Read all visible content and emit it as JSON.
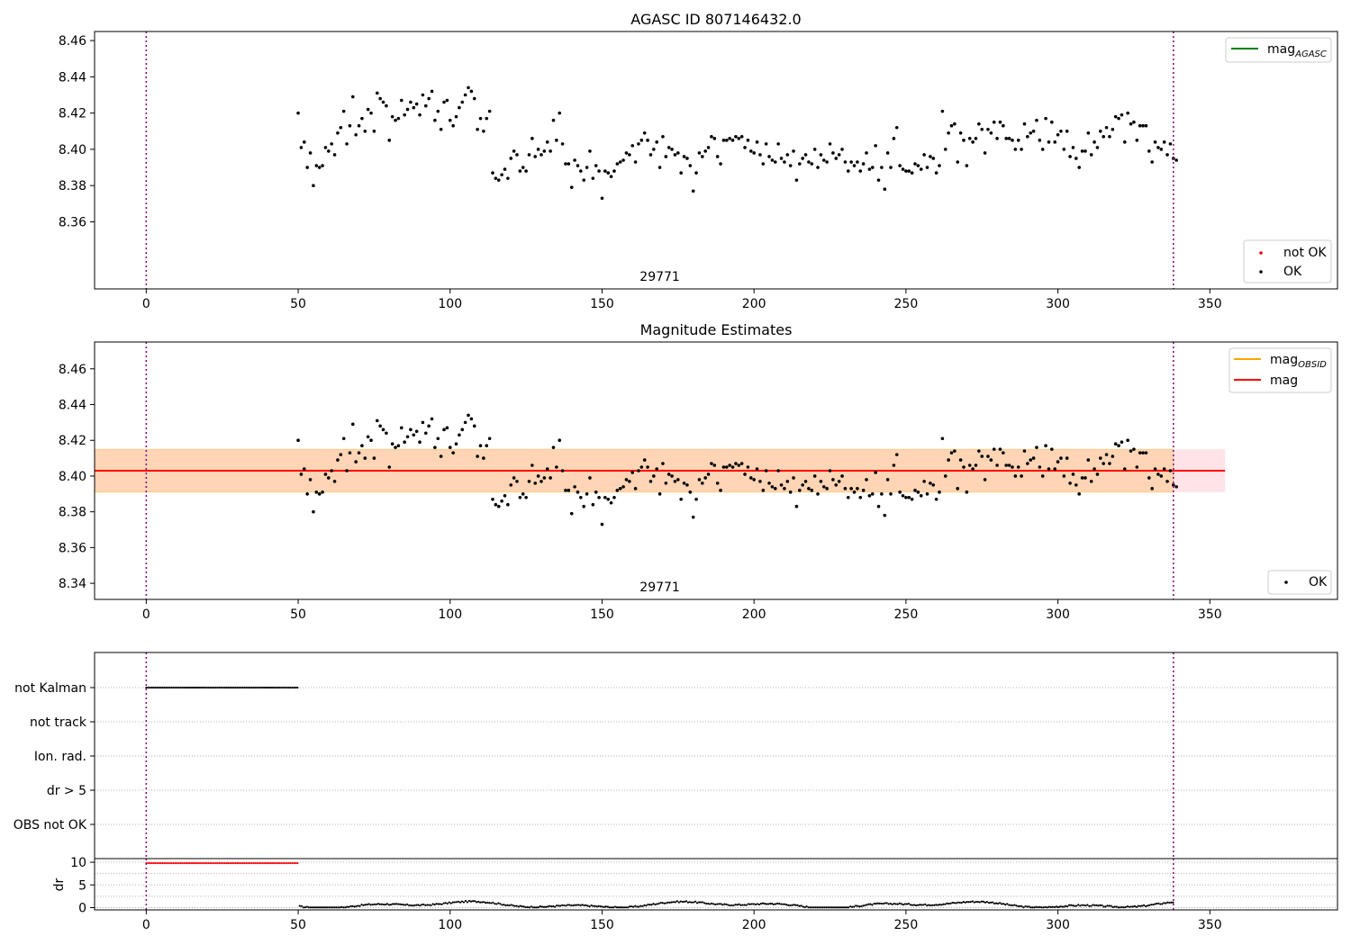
{
  "chart_data": [
    {
      "type": "scatter",
      "title": "AGASC ID 807146432.0",
      "xlim": [
        -17,
        392
      ],
      "ylim": [
        8.323,
        8.465
      ],
      "xticks": [
        0,
        50,
        100,
        150,
        200,
        250,
        300,
        350
      ],
      "yticks": [
        8.36,
        8.38,
        8.4,
        8.42,
        8.44,
        8.46
      ],
      "vlines": [
        0,
        338
      ],
      "obs_label": "29771",
      "obs_label_x": 169,
      "legend_lines": [
        {
          "label": "mag",
          "sub": "AGASC",
          "color": "#008000"
        }
      ],
      "legend_points": [
        {
          "label": "not OK",
          "color": "#ff0000"
        },
        {
          "label": "OK",
          "color": "#000000"
        }
      ],
      "series": [
        {
          "name": "OK",
          "color": "#000000",
          "x_start": 50,
          "x_end": 338
        }
      ]
    },
    {
      "type": "scatter",
      "title": "Magnitude Estimates",
      "xlim": [
        -17,
        392
      ],
      "ylim": [
        8.331,
        8.475
      ],
      "xticks": [
        0,
        50,
        100,
        150,
        200,
        250,
        300,
        350
      ],
      "yticks": [
        8.34,
        8.36,
        8.38,
        8.4,
        8.42,
        8.44,
        8.46
      ],
      "vlines": [
        0,
        338
      ],
      "obs_label": "29771",
      "obs_label_x": 169,
      "mag_line": 8.403,
      "mag_band": [
        8.391,
        8.415
      ],
      "band_x": [
        -17,
        355
      ],
      "legend_lines": [
        {
          "label": "mag",
          "sub": "OBSID",
          "color": "#ffa500"
        },
        {
          "label": "mag",
          "sub": "",
          "color": "#ff0000"
        }
      ],
      "legend_points": [
        {
          "label": "OK",
          "color": "#000000"
        }
      ],
      "series": [
        {
          "name": "OK",
          "color": "#000000",
          "x_start": 50,
          "x_end": 338
        }
      ]
    },
    {
      "type": "scatter",
      "xlim": [
        -17,
        392
      ],
      "flag_labels": [
        "not Kalman",
        "not track",
        "Ion. rad.",
        "dr > 5",
        "OBS not OK"
      ],
      "not_kalman_x": [
        0,
        50
      ],
      "vlines": [
        0,
        338
      ]
    },
    {
      "type": "scatter",
      "ylabel": "dr",
      "xlim": [
        -17,
        392
      ],
      "ylim": [
        -0.5,
        10.8
      ],
      "yticks": [
        0,
        5,
        10
      ],
      "xticks": [
        0,
        50,
        100,
        150,
        200,
        250,
        300,
        350
      ],
      "vlines": [
        0,
        338
      ],
      "series": [
        {
          "name": "dr > 5",
          "color": "#ff0000",
          "x_start": 0,
          "x_end": 50,
          "value": 9.8
        },
        {
          "name": "dr",
          "color": "#000000",
          "x_start": 50,
          "x_end": 338
        }
      ]
    }
  ],
  "mag_points": [
    [
      50,
      8.42
    ],
    [
      51,
      8.401
    ],
    [
      52,
      8.404
    ],
    [
      53,
      8.39
    ],
    [
      54,
      8.398
    ],
    [
      55,
      8.38
    ],
    [
      56,
      8.391
    ],
    [
      57,
      8.39
    ],
    [
      58,
      8.391
    ],
    [
      59,
      8.401
    ],
    [
      60,
      8.399
    ],
    [
      61,
      8.403
    ],
    [
      62,
      8.397
    ],
    [
      63,
      8.409
    ],
    [
      64,
      8.412
    ],
    [
      65,
      8.421
    ],
    [
      66,
      8.403
    ],
    [
      67,
      8.413
    ],
    [
      68,
      8.429
    ],
    [
      69,
      8.408
    ],
    [
      70,
      8.413
    ],
    [
      71,
      8.417
    ],
    [
      72,
      8.41
    ],
    [
      73,
      8.422
    ],
    [
      74,
      8.42
    ],
    [
      75,
      8.41
    ],
    [
      76,
      8.431
    ],
    [
      77,
      8.428
    ],
    [
      78,
      8.426
    ],
    [
      79,
      8.424
    ],
    [
      80,
      8.405
    ],
    [
      81,
      8.418
    ],
    [
      82,
      8.416
    ],
    [
      83,
      8.417
    ],
    [
      84,
      8.427
    ],
    [
      85,
      8.419
    ],
    [
      86,
      8.422
    ],
    [
      87,
      8.426
    ],
    [
      88,
      8.423
    ],
    [
      89,
      8.425
    ],
    [
      90,
      8.419
    ],
    [
      91,
      8.43
    ],
    [
      92,
      8.424
    ],
    [
      93,
      8.428
    ],
    [
      94,
      8.432
    ],
    [
      95,
      8.416
    ],
    [
      96,
      8.421
    ],
    [
      97,
      8.411
    ],
    [
      98,
      8.426
    ],
    [
      99,
      8.427
    ],
    [
      100,
      8.416
    ],
    [
      101,
      8.413
    ],
    [
      102,
      8.418
    ],
    [
      103,
      8.423
    ],
    [
      104,
      8.426
    ],
    [
      105,
      8.43
    ],
    [
      106,
      8.434
    ],
    [
      107,
      8.432
    ],
    [
      108,
      8.428
    ],
    [
      109,
      8.411
    ],
    [
      110,
      8.417
    ],
    [
      111,
      8.41
    ],
    [
      112,
      8.417
    ],
    [
      113,
      8.421
    ],
    [
      114,
      8.387
    ],
    [
      115,
      8.384
    ],
    [
      116,
      8.383
    ],
    [
      117,
      8.386
    ],
    [
      118,
      8.389
    ],
    [
      119,
      8.384
    ],
    [
      120,
      8.395
    ],
    [
      121,
      8.399
    ],
    [
      122,
      8.397
    ],
    [
      123,
      8.388
    ],
    [
      124,
      8.39
    ],
    [
      125,
      8.388
    ],
    [
      126,
      8.397
    ],
    [
      127,
      8.406
    ],
    [
      128,
      8.396
    ],
    [
      129,
      8.4
    ],
    [
      130,
      8.397
    ],
    [
      131,
      8.399
    ],
    [
      132,
      8.404
    ],
    [
      133,
      8.399
    ],
    [
      134,
      8.416
    ],
    [
      135,
      8.405
    ],
    [
      136,
      8.42
    ],
    [
      137,
      8.403
    ],
    [
      138,
      8.392
    ],
    [
      139,
      8.392
    ],
    [
      140,
      8.379
    ],
    [
      141,
      8.394
    ],
    [
      142,
      8.391
    ],
    [
      143,
      8.388
    ],
    [
      144,
      8.383
    ],
    [
      145,
      8.39
    ],
    [
      146,
      8.399
    ],
    [
      147,
      8.384
    ],
    [
      148,
      8.391
    ],
    [
      149,
      8.388
    ],
    [
      150,
      8.373
    ],
    [
      151,
      8.388
    ],
    [
      152,
      8.387
    ],
    [
      153,
      8.385
    ],
    [
      154,
      8.388
    ],
    [
      155,
      8.392
    ],
    [
      156,
      8.393
    ],
    [
      157,
      8.394
    ],
    [
      158,
      8.398
    ],
    [
      159,
      8.397
    ],
    [
      160,
      8.402
    ],
    [
      161,
      8.393
    ],
    [
      162,
      8.403
    ],
    [
      163,
      8.405
    ],
    [
      164,
      8.409
    ],
    [
      165,
      8.405
    ],
    [
      166,
      8.397
    ],
    [
      167,
      8.4
    ],
    [
      168,
      8.404
    ],
    [
      169,
      8.39
    ],
    [
      170,
      8.407
    ],
    [
      171,
      8.396
    ],
    [
      172,
      8.401
    ],
    [
      173,
      8.4
    ],
    [
      174,
      8.397
    ],
    [
      175,
      8.398
    ],
    [
      176,
      8.387
    ],
    [
      177,
      8.396
    ],
    [
      178,
      8.395
    ],
    [
      179,
      8.391
    ],
    [
      180,
      8.377
    ],
    [
      181,
      8.387
    ],
    [
      182,
      8.398
    ],
    [
      183,
      8.396
    ],
    [
      184,
      8.399
    ],
    [
      185,
      8.401
    ],
    [
      186,
      8.407
    ],
    [
      187,
      8.406
    ],
    [
      188,
      8.396
    ],
    [
      189,
      8.392
    ],
    [
      190,
      8.405
    ],
    [
      191,
      8.405
    ],
    [
      192,
      8.406
    ],
    [
      193,
      8.405
    ],
    [
      194,
      8.407
    ],
    [
      195,
      8.406
    ],
    [
      196,
      8.407
    ],
    [
      197,
      8.401
    ],
    [
      198,
      8.405
    ],
    [
      199,
      8.399
    ],
    [
      200,
      8.398
    ],
    [
      201,
      8.404
    ],
    [
      202,
      8.397
    ],
    [
      203,
      8.392
    ],
    [
      204,
      8.403
    ],
    [
      205,
      8.396
    ],
    [
      206,
      8.394
    ],
    [
      207,
      8.393
    ],
    [
      208,
      8.403
    ],
    [
      209,
      8.395
    ],
    [
      210,
      8.393
    ],
    [
      211,
      8.397
    ],
    [
      212,
      8.391
    ],
    [
      213,
      8.399
    ],
    [
      214,
      8.383
    ],
    [
      215,
      8.392
    ],
    [
      216,
      8.395
    ],
    [
      217,
      8.397
    ],
    [
      218,
      8.393
    ],
    [
      219,
      8.392
    ],
    [
      220,
      8.4
    ],
    [
      221,
      8.39
    ],
    [
      222,
      8.397
    ],
    [
      223,
      8.394
    ],
    [
      224,
      8.393
    ],
    [
      225,
      8.403
    ],
    [
      226,
      8.398
    ],
    [
      227,
      8.395
    ],
    [
      228,
      8.397
    ],
    [
      229,
      8.4
    ],
    [
      230,
      8.393
    ],
    [
      231,
      8.388
    ],
    [
      232,
      8.393
    ],
    [
      233,
      8.391
    ],
    [
      234,
      8.393
    ],
    [
      235,
      8.388
    ],
    [
      236,
      8.392
    ],
    [
      237,
      8.398
    ],
    [
      238,
      8.389
    ],
    [
      239,
      8.39
    ],
    [
      240,
      8.402
    ],
    [
      241,
      8.383
    ],
    [
      242,
      8.39
    ],
    [
      243,
      8.378
    ],
    [
      244,
      8.398
    ],
    [
      245,
      8.39
    ],
    [
      246,
      8.406
    ],
    [
      247,
      8.412
    ],
    [
      248,
      8.391
    ],
    [
      249,
      8.389
    ],
    [
      250,
      8.388
    ],
    [
      251,
      8.388
    ],
    [
      252,
      8.387
    ],
    [
      253,
      8.392
    ],
    [
      254,
      8.391
    ],
    [
      255,
      8.389
    ],
    [
      256,
      8.397
    ],
    [
      257,
      8.39
    ],
    [
      258,
      8.396
    ],
    [
      259,
      8.395
    ],
    [
      260,
      8.387
    ],
    [
      261,
      8.391
    ],
    [
      262,
      8.421
    ],
    [
      263,
      8.4
    ],
    [
      264,
      8.409
    ],
    [
      265,
      8.413
    ],
    [
      266,
      8.414
    ],
    [
      267,
      8.393
    ],
    [
      268,
      8.409
    ],
    [
      269,
      8.405
    ],
    [
      270,
      8.391
    ],
    [
      271,
      8.406
    ],
    [
      272,
      8.404
    ],
    [
      273,
      8.406
    ],
    [
      274,
      8.414
    ],
    [
      275,
      8.411
    ],
    [
      276,
      8.398
    ],
    [
      277,
      8.411
    ],
    [
      278,
      8.409
    ],
    [
      279,
      8.415
    ],
    [
      280,
      8.406
    ],
    [
      281,
      8.415
    ],
    [
      282,
      8.413
    ],
    [
      283,
      8.406
    ],
    [
      284,
      8.406
    ],
    [
      285,
      8.405
    ],
    [
      286,
      8.4
    ],
    [
      287,
      8.405
    ],
    [
      288,
      8.4
    ],
    [
      289,
      8.414
    ],
    [
      290,
      8.407
    ],
    [
      291,
      8.409
    ],
    [
      292,
      8.41
    ],
    [
      293,
      8.416
    ],
    [
      294,
      8.405
    ],
    [
      295,
      8.4
    ],
    [
      296,
      8.417
    ],
    [
      297,
      8.404
    ],
    [
      298,
      8.415
    ],
    [
      299,
      8.404
    ],
    [
      300,
      8.408
    ],
    [
      301,
      8.41
    ],
    [
      302,
      8.4
    ],
    [
      303,
      8.41
    ],
    [
      304,
      8.396
    ],
    [
      305,
      8.401
    ],
    [
      306,
      8.395
    ],
    [
      307,
      8.39
    ],
    [
      308,
      8.399
    ],
    [
      309,
      8.399
    ],
    [
      310,
      8.409
    ],
    [
      311,
      8.397
    ],
    [
      312,
      8.404
    ],
    [
      313,
      8.401
    ],
    [
      314,
      8.41
    ],
    [
      315,
      8.407
    ],
    [
      316,
      8.412
    ],
    [
      317,
      8.407
    ],
    [
      318,
      8.411
    ],
    [
      319,
      8.418
    ],
    [
      320,
      8.417
    ],
    [
      321,
      8.419
    ],
    [
      322,
      8.404
    ],
    [
      323,
      8.42
    ],
    [
      324,
      8.414
    ],
    [
      325,
      8.415
    ],
    [
      326,
      8.405
    ],
    [
      327,
      8.413
    ],
    [
      328,
      8.413
    ],
    [
      329,
      8.413
    ],
    [
      330,
      8.399
    ],
    [
      331,
      8.393
    ],
    [
      332,
      8.404
    ],
    [
      333,
      8.401
    ],
    [
      334,
      8.4
    ],
    [
      335,
      8.404
    ],
    [
      336,
      8.397
    ],
    [
      337,
      8.403
    ],
    [
      338,
      8.395
    ],
    [
      339,
      8.394
    ]
  ]
}
